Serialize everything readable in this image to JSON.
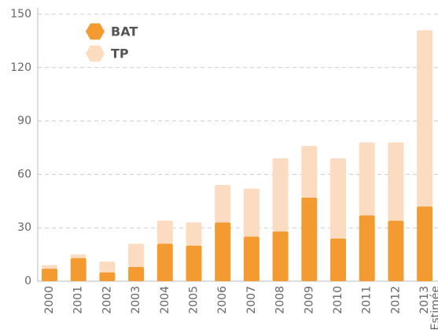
{
  "chart_data": {
    "type": "stacked_bar",
    "categories": [
      "2000",
      "2001",
      "2002",
      "2003",
      "2004",
      "2005",
      "2006",
      "2007",
      "2008",
      "2009",
      "2010",
      "2011",
      "2012",
      "2013"
    ],
    "annotation": "Estimée",
    "series": [
      {
        "name": "BAT",
        "color": "#f39a30",
        "values": [
          7,
          13,
          5,
          8,
          21,
          20,
          33,
          25,
          28,
          47,
          24,
          37,
          34,
          42
        ]
      },
      {
        "name": "TP",
        "color": "#fbdcc0",
        "values": [
          2,
          2,
          6,
          13,
          13,
          13,
          21,
          27,
          41,
          29,
          45,
          41,
          44,
          99
        ]
      }
    ],
    "ylim": [
      0,
      150
    ],
    "yticks": [
      0,
      30,
      60,
      90,
      120,
      150
    ],
    "grid": true,
    "legend": "top-left"
  }
}
